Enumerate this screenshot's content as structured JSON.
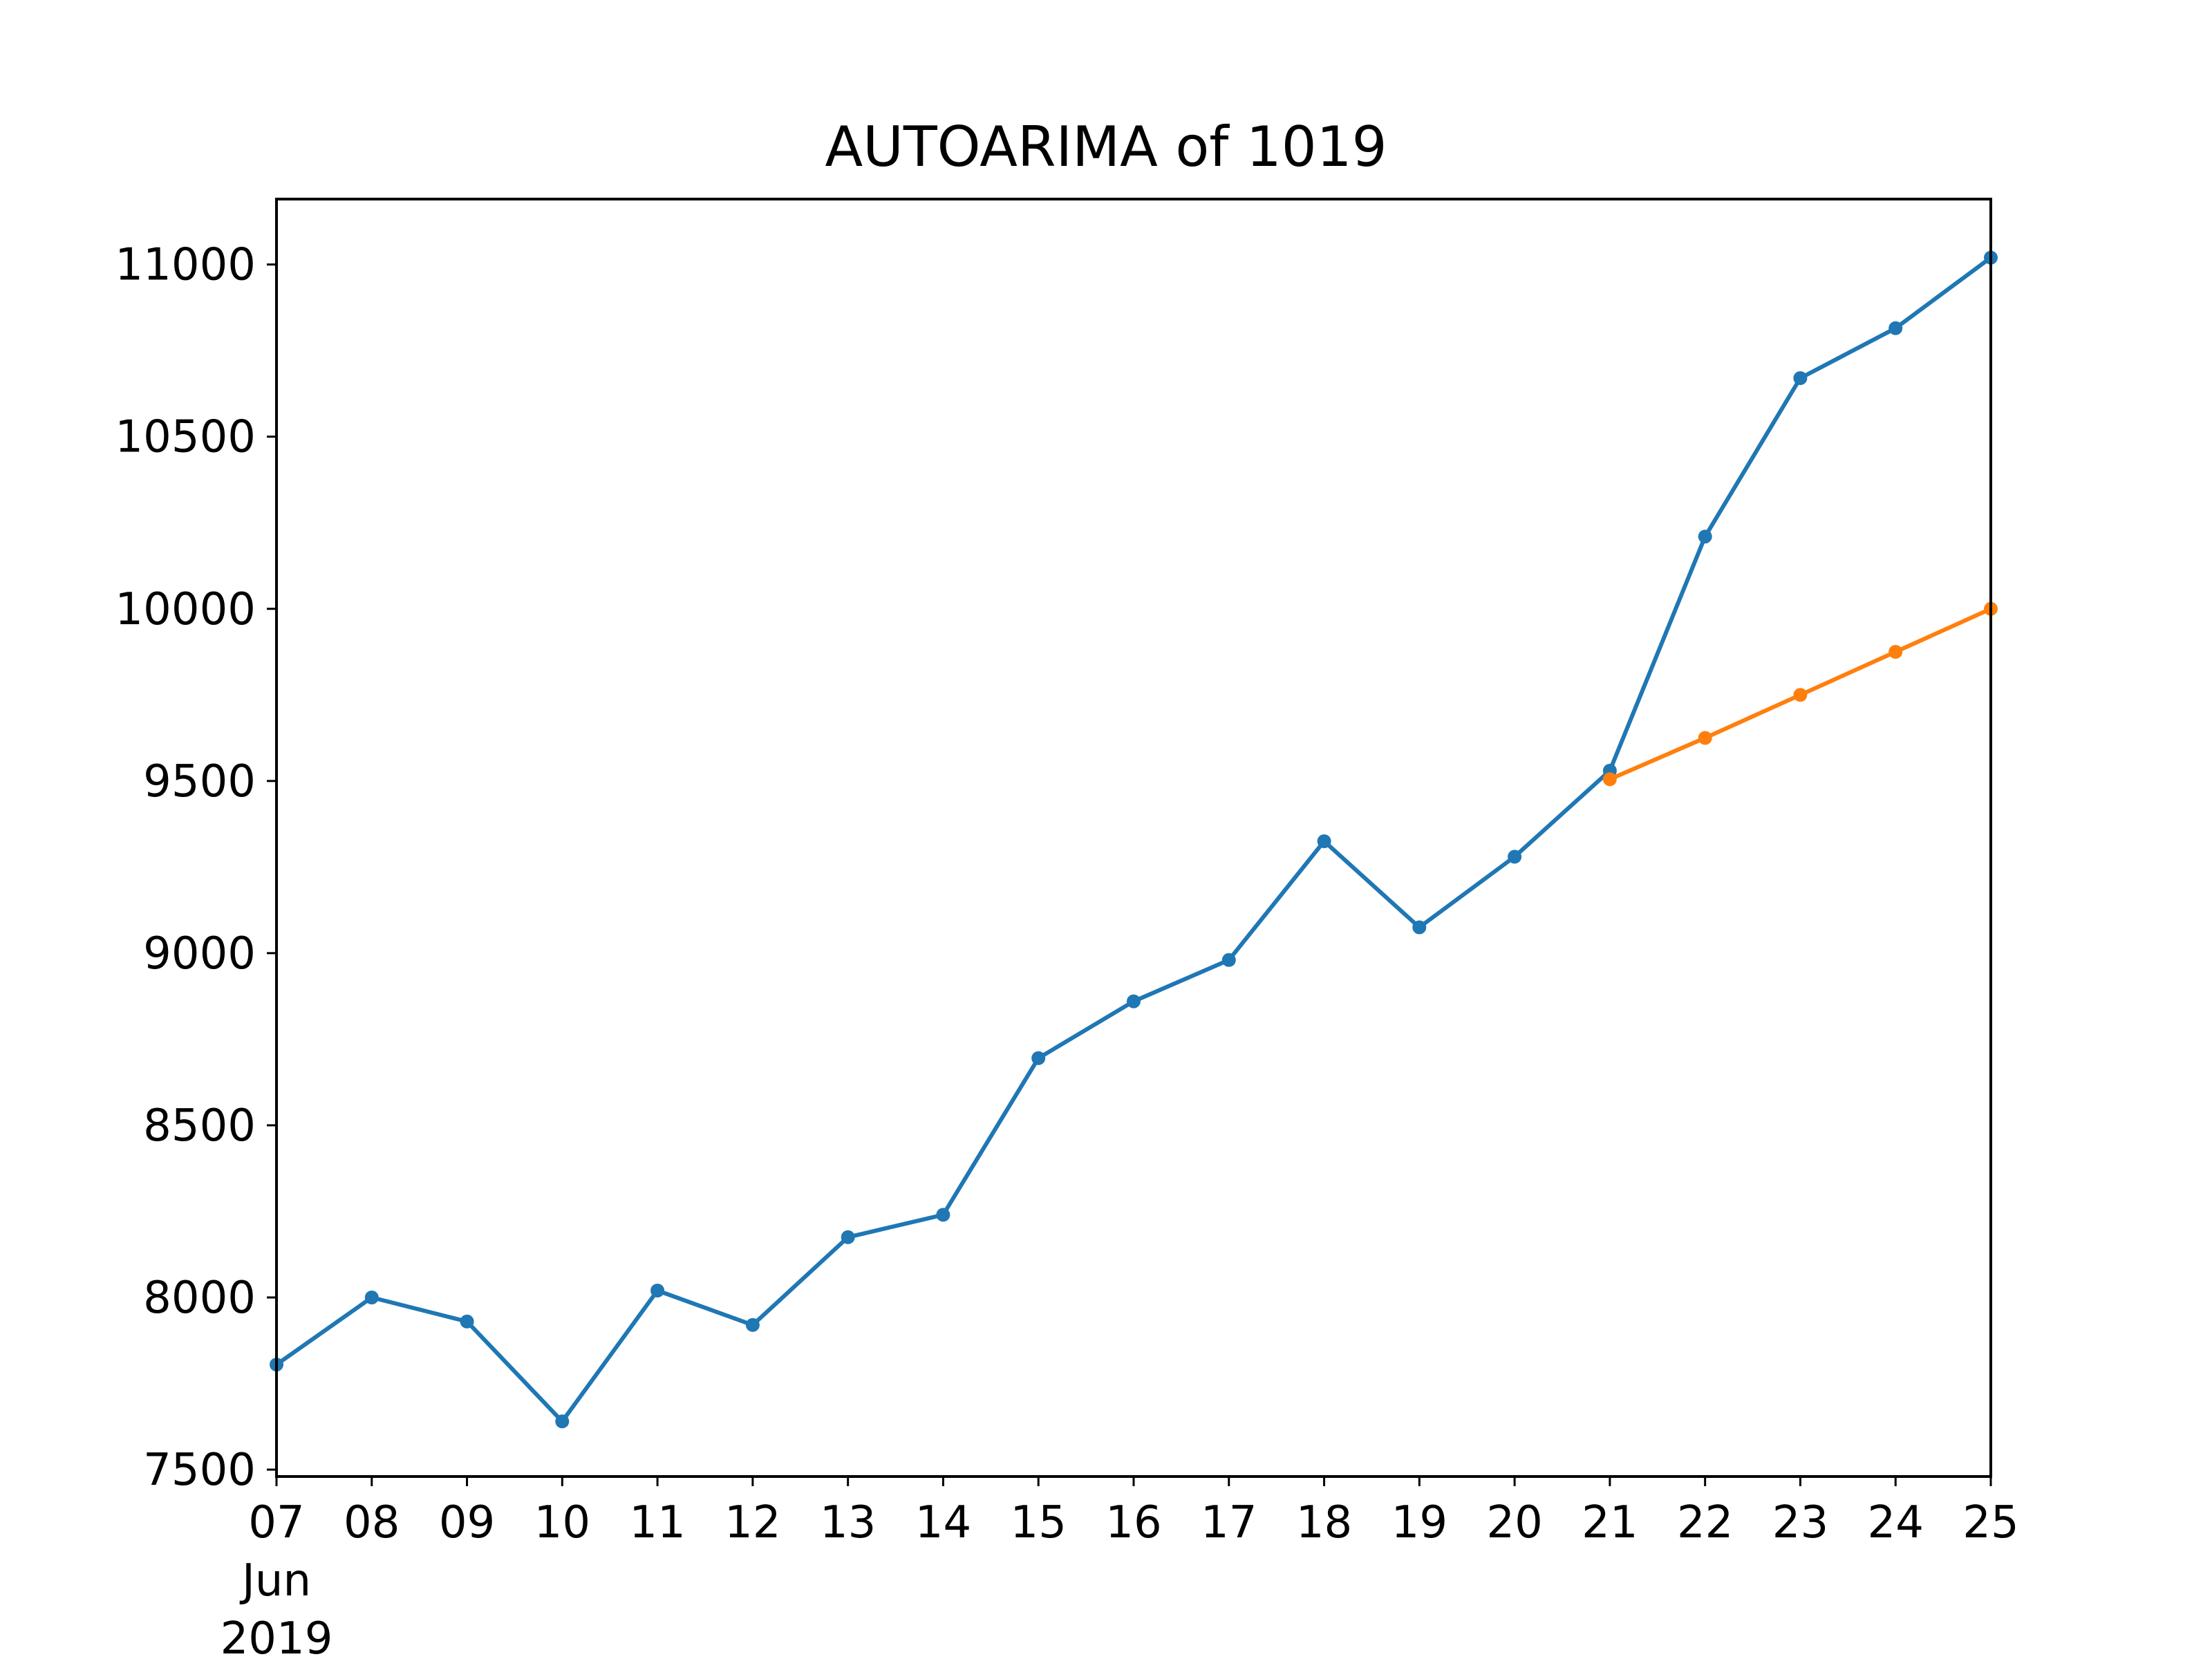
{
  "chart_data": {
    "type": "line",
    "title": "AUTOARIMA of 1019",
    "xlabel": "",
    "ylabel": "",
    "x_tick_labels": [
      "07",
      "08",
      "09",
      "10",
      "11",
      "12",
      "13",
      "14",
      "15",
      "16",
      "17",
      "18",
      "19",
      "20",
      "21",
      "22",
      "23",
      "24",
      "25"
    ],
    "x_secondary_labels": [
      "Jun",
      "2019"
    ],
    "x": [
      "2019-06-07",
      "2019-06-08",
      "2019-06-09",
      "2019-06-10",
      "2019-06-11",
      "2019-06-12",
      "2019-06-13",
      "2019-06-14",
      "2019-06-15",
      "2019-06-16",
      "2019-06-17",
      "2019-06-18",
      "2019-06-19",
      "2019-06-20",
      "2019-06-21",
      "2019-06-22",
      "2019-06-23",
      "2019-06-24",
      "2019-06-25"
    ],
    "y_ticks": [
      7500,
      8000,
      8500,
      9000,
      9500,
      10000,
      10500,
      11000
    ],
    "ylim": [
      7480,
      11190
    ],
    "xlim": [
      "2019-06-07",
      "2019-06-25"
    ],
    "grid": false,
    "legend": "none",
    "series": [
      {
        "color": "#1f77b4",
        "x": [
          "2019-06-07",
          "2019-06-08",
          "2019-06-09",
          "2019-06-10",
          "2019-06-11",
          "2019-06-12",
          "2019-06-13",
          "2019-06-14",
          "2019-06-15",
          "2019-06-16",
          "2019-06-17",
          "2019-06-18",
          "2019-06-19",
          "2019-06-20",
          "2019-06-21",
          "2019-06-22",
          "2019-06-23",
          "2019-06-24",
          "2019-06-25"
        ],
        "values": [
          7805,
          8000,
          7930,
          7640,
          8020,
          7920,
          8175,
          8240,
          8695,
          8860,
          8980,
          9325,
          9075,
          9280,
          9530,
          10210,
          10670,
          10815,
          11020
        ]
      },
      {
        "color": "#ff7f0e",
        "x": [
          "2019-06-21",
          "2019-06-22",
          "2019-06-23",
          "2019-06-24",
          "2019-06-25"
        ],
        "values": [
          9505,
          9625,
          9750,
          9875,
          10000
        ]
      }
    ]
  }
}
